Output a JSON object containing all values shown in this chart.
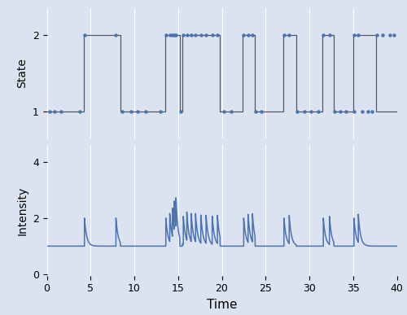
{
  "xlim": [
    0,
    40
  ],
  "state_ylim": [
    0.65,
    2.35
  ],
  "intensity_ylim": [
    -0.05,
    4.6
  ],
  "state_yticks": [
    1,
    2
  ],
  "intensity_yticks": [
    0,
    2,
    4
  ],
  "xticks": [
    0,
    5,
    10,
    15,
    20,
    25,
    30,
    35,
    40
  ],
  "xlabel": "Time",
  "state_ylabel": "State",
  "intensity_ylabel": "Intensity",
  "line_color": "#4c72b0",
  "dot_color": "#4c72b0",
  "state_line_color": "#555566",
  "background_color": "#dce3f0",
  "nu1": 1.0,
  "alpha": 1.0,
  "beta": 4.0,
  "state_path_t": [
    0,
    4.2,
    4.2,
    8.4,
    8.4,
    13.5,
    13.5,
    15.2,
    15.2,
    15.5,
    15.5,
    19.8,
    19.8,
    22.4,
    22.4,
    23.8,
    23.8,
    27.0,
    27.0,
    28.5,
    28.5,
    31.5,
    31.5,
    32.8,
    32.8,
    35.0,
    35.0,
    37.6,
    37.6,
    40.0
  ],
  "state_path_y": [
    1,
    1,
    2,
    2,
    1,
    1,
    2,
    2,
    1,
    1,
    2,
    2,
    1,
    1,
    2,
    2,
    1,
    1,
    2,
    2,
    1,
    1,
    2,
    2,
    1,
    1,
    2,
    2,
    1,
    1
  ],
  "events_state1": [
    0.3,
    0.9,
    1.6,
    3.8,
    8.6,
    9.6,
    10.4,
    11.3,
    13.0,
    15.3,
    20.2,
    21.1,
    23.9,
    24.5,
    28.6,
    29.4,
    30.2,
    31.0,
    32.9,
    33.5,
    34.2,
    35.1,
    36.0,
    36.7,
    37.2
  ],
  "events_state2": [
    4.3,
    7.9,
    13.6,
    14.05,
    14.35,
    14.55,
    14.75,
    15.6,
    16.0,
    16.5,
    17.0,
    17.6,
    18.2,
    18.9,
    19.5,
    22.5,
    23.0,
    23.5,
    27.1,
    27.7,
    31.6,
    32.3,
    35.1,
    35.6,
    37.7,
    38.4,
    39.2,
    39.7
  ]
}
